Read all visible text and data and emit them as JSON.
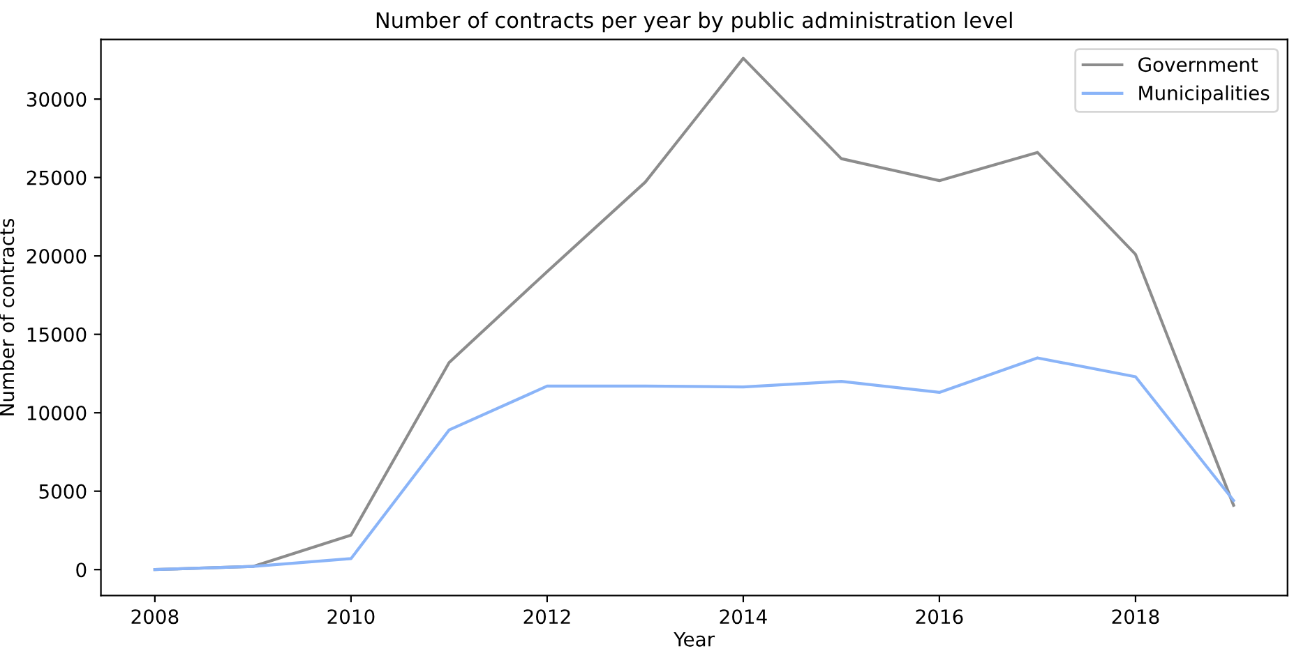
{
  "chart_data": {
    "type": "line",
    "title": "Number of contracts per year by public administration level",
    "xlabel": "Year",
    "ylabel": "Number of contracts",
    "x": [
      2008,
      2009,
      2010,
      2011,
      2012,
      2013,
      2014,
      2015,
      2016,
      2017,
      2018,
      2019
    ],
    "series": [
      {
        "name": "Government",
        "color": "#8c8c8c",
        "values": [
          0,
          200,
          2200,
          13200,
          19000,
          24700,
          32600,
          26200,
          24800,
          26600,
          20100,
          4100
        ]
      },
      {
        "name": "Municipalities",
        "color": "#8ab4f8",
        "values": [
          0,
          200,
          700,
          8900,
          11700,
          11700,
          11650,
          12000,
          11300,
          13500,
          12300,
          4400
        ]
      }
    ],
    "xlim": [
      2007.45,
      2019.55
    ],
    "xticks": [
      2008,
      2010,
      2012,
      2014,
      2016,
      2018
    ],
    "ylim": [
      -1650,
      33800
    ],
    "yticks": [
      0,
      5000,
      10000,
      15000,
      20000,
      25000,
      30000
    ],
    "legend": "top right",
    "grid": false
  }
}
